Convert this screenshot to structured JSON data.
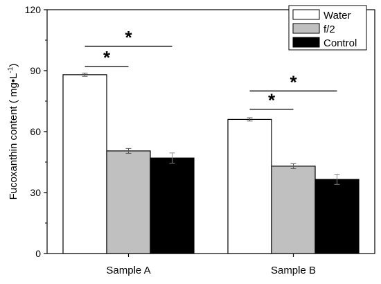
{
  "chart_data": {
    "type": "bar",
    "title": "",
    "xlabel": "",
    "ylabel": "Fucoxanthin content ( mg•L",
    "ylabel_sup": "-1",
    "ylabel_close": ")",
    "ylim": [
      0,
      120
    ],
    "yticks": [
      0,
      30,
      60,
      90,
      120
    ],
    "categories": [
      "Sample A",
      "Sample B"
    ],
    "series": [
      {
        "name": "Water",
        "color": "#ffffff",
        "values": [
          88,
          66
        ],
        "errors": [
          0.8,
          0.8
        ]
      },
      {
        "name": "f/2",
        "color": "#c0c0c0",
        "values": [
          50.5,
          43
        ],
        "errors": [
          1.2,
          1.2
        ]
      },
      {
        "name": "Control",
        "color": "#000000",
        "values": [
          47,
          36.5
        ],
        "errors": [
          2.5,
          2.5
        ]
      }
    ],
    "legend_position": "top-right",
    "significance": [
      {
        "category": 0,
        "from_series": 0,
        "to_series": 1,
        "level": 92,
        "label": "*"
      },
      {
        "category": 0,
        "from_series": 0,
        "to_series": 2,
        "level": 102,
        "label": "*"
      },
      {
        "category": 1,
        "from_series": 0,
        "to_series": 1,
        "level": 71,
        "label": "*"
      },
      {
        "category": 1,
        "from_series": 0,
        "to_series": 2,
        "level": 80,
        "label": "*"
      }
    ]
  }
}
